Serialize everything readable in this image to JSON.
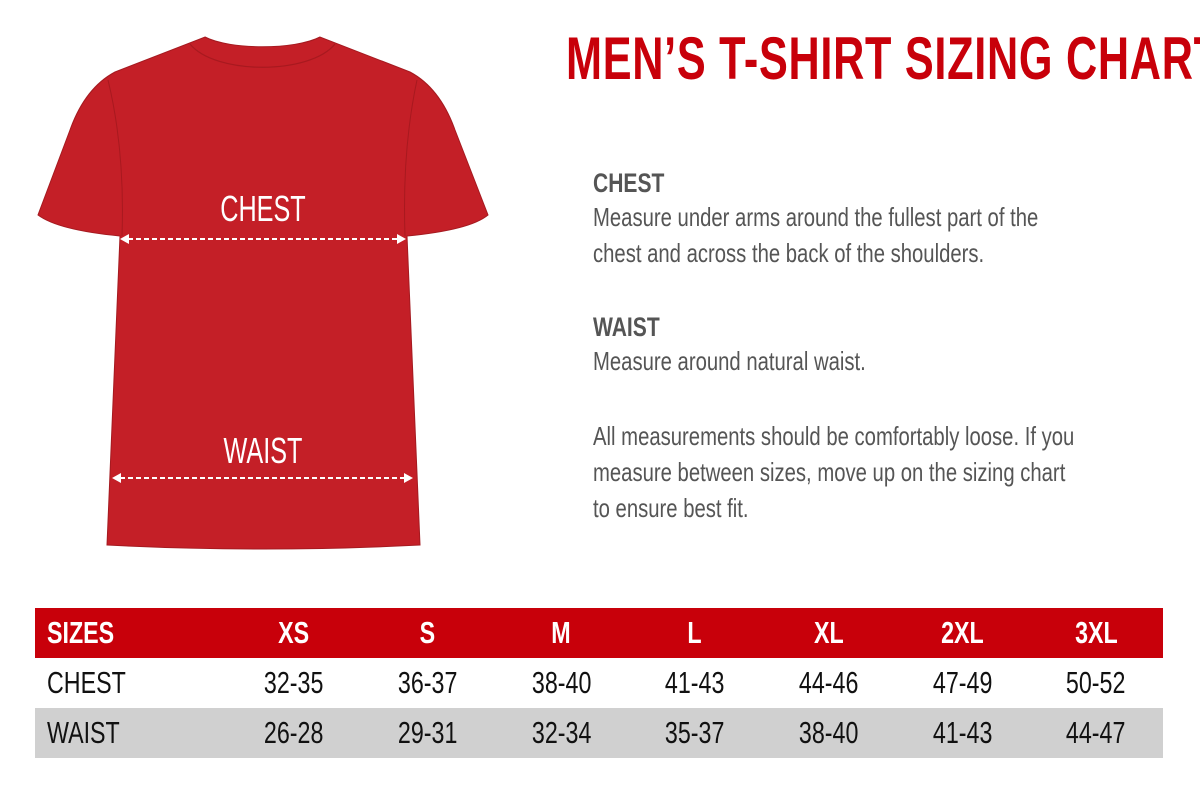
{
  "title": "MEN’S T-SHIRT SIZING CHART",
  "colors": {
    "accent": "#c8000a",
    "shirt": "#c41f27",
    "text": "#555555",
    "row_alt": "#d0d0d0"
  },
  "shirt": {
    "chest_label": "CHEST",
    "waist_label": "WAIST"
  },
  "info": {
    "chest_heading": "CHEST",
    "chest_lines": [
      "Measure under arms around the fullest part of the",
      "chest and across the back of the shoulders."
    ],
    "waist_heading": "WAIST",
    "waist_lines": [
      "Measure around natural waist."
    ],
    "note_lines": [
      "All measurements should be comfortably loose. If you",
      "measure between sizes, move up on the sizing chart",
      "to ensure best fit."
    ]
  },
  "table": {
    "header": [
      "SIZES",
      "XS",
      "S",
      "M",
      "L",
      "XL",
      "2XL",
      "3XL"
    ],
    "rows": [
      [
        "CHEST",
        "32-35",
        "36-37",
        "38-40",
        "41-43",
        "44-46",
        "47-49",
        "50-52"
      ],
      [
        "WAIST",
        "26-28",
        "29-31",
        "32-34",
        "35-37",
        "38-40",
        "41-43",
        "44-47"
      ]
    ]
  }
}
